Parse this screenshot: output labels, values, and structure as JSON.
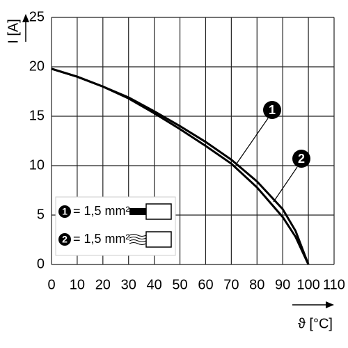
{
  "chart_data": {
    "type": "line",
    "x_label": "ϑ [°C]",
    "y_label": "I [A]",
    "x": [
      0,
      10,
      20,
      30,
      40,
      50,
      60,
      70,
      80,
      90,
      95,
      100
    ],
    "series": [
      {
        "name": "1",
        "label": "= 1,5 mm²",
        "color": "#000000",
        "values": [
          19.8,
          19.0,
          18.0,
          16.8,
          15.3,
          13.7,
          12.0,
          10.2,
          7.8,
          4.8,
          2.8,
          0
        ]
      },
      {
        "name": "2",
        "label": "= 1,5 mm²",
        "color": "#000000",
        "values": [
          19.8,
          19.0,
          18.0,
          16.9,
          15.5,
          14.0,
          12.4,
          10.6,
          8.4,
          5.6,
          3.4,
          0
        ]
      }
    ],
    "xlim": [
      0,
      110
    ],
    "xticks": [
      0,
      10,
      20,
      30,
      40,
      50,
      60,
      70,
      80,
      90,
      100,
      110
    ],
    "ylim": [
      0,
      25
    ],
    "yticks": [
      0,
      5,
      10,
      15,
      20,
      25
    ],
    "grid": true
  }
}
